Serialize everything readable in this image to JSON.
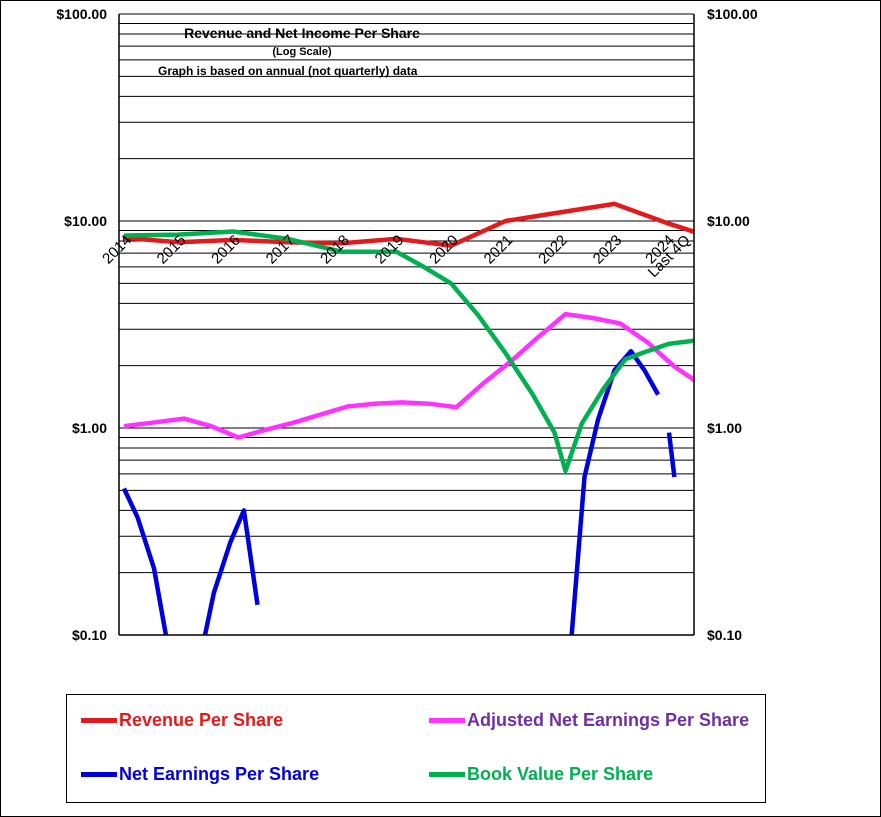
{
  "chart_data": {
    "type": "line",
    "title": "Revenue  and Net Income  Per Share",
    "subtitle": "(Log  Scale)",
    "note": "Graph is based on annual (not quarterly) data",
    "y_scale": "log",
    "ylim": [
      0.1,
      100
    ],
    "y_ticks": [
      0.1,
      1,
      10,
      100
    ],
    "y_tick_labels": [
      "$0.10",
      "$1.00",
      "$10.00",
      "$100.00"
    ],
    "categories": [
      "2014",
      "2015",
      "2016",
      "2017",
      "2018",
      "2019",
      "2020",
      "2021",
      "2022",
      "2023",
      "2024",
      "Last 4Q"
    ],
    "series": [
      {
        "name": "Revenue Per Share",
        "color": "#e31a1c",
        "x": [
          0,
          1,
          2,
          3,
          4,
          5,
          6,
          7,
          8,
          9,
          10,
          10.5
        ],
        "values": [
          8.3,
          7.9,
          8.1,
          7.9,
          7.8,
          8.2,
          7.6,
          10.0,
          11.0,
          12.1,
          9.7,
          8.8
        ]
      },
      {
        "name": "Adjusted Net Earnings Per Share",
        "color": "#ff33ff",
        "legend_color": "#7030a0",
        "x": [
          0,
          0.5,
          1.1,
          1.6,
          2.1,
          2.6,
          3.1,
          3.6,
          4.1,
          4.6,
          5.1,
          5.6,
          6.1,
          6.6,
          7.1,
          7.6,
          8.1,
          8.6,
          9.1,
          9.6,
          10.1,
          10.5
        ],
        "values": [
          1.02,
          1.06,
          1.11,
          1.02,
          0.9,
          0.98,
          1.06,
          1.16,
          1.27,
          1.31,
          1.33,
          1.31,
          1.26,
          1.65,
          2.1,
          2.75,
          3.55,
          3.4,
          3.2,
          2.6,
          1.98,
          1.68
        ]
      },
      {
        "name": "Net Earnings Per Share",
        "color": "#0000dd",
        "x": [
          0,
          0.25,
          0.55,
          0.8,
          1.45,
          1.65,
          1.95,
          2.2,
          2.45,
          8.2,
          8.45,
          8.7,
          9.0,
          9.3,
          9.55,
          9.8,
          10.0,
          10.1
        ],
        "values": [
          0.51,
          0.37,
          0.21,
          0.09,
          0.09,
          0.16,
          0.28,
          0.4,
          0.14,
          0.09,
          0.58,
          1.1,
          1.9,
          2.35,
          1.9,
          1.45,
          0.95,
          0.58
        ],
        "segments": [
          [
            0,
            4
          ],
          [
            4,
            9
          ],
          [
            9,
            16
          ],
          [
            16,
            18
          ]
        ]
      },
      {
        "name": "Book Value Per Share",
        "color": "#00b050",
        "x": [
          0,
          1,
          2,
          3,
          4,
          5,
          5.5,
          6,
          6.5,
          7,
          7.5,
          7.9,
          8.1,
          8.4,
          8.8,
          9.2,
          9.6,
          10.0,
          10.5
        ],
        "values": [
          8.5,
          8.6,
          8.9,
          8.2,
          7.1,
          7.1,
          6.0,
          5.0,
          3.5,
          2.3,
          1.45,
          0.95,
          0.62,
          1.05,
          1.55,
          2.15,
          2.35,
          2.55,
          2.65
        ]
      }
    ],
    "legend_position": "bottom"
  }
}
